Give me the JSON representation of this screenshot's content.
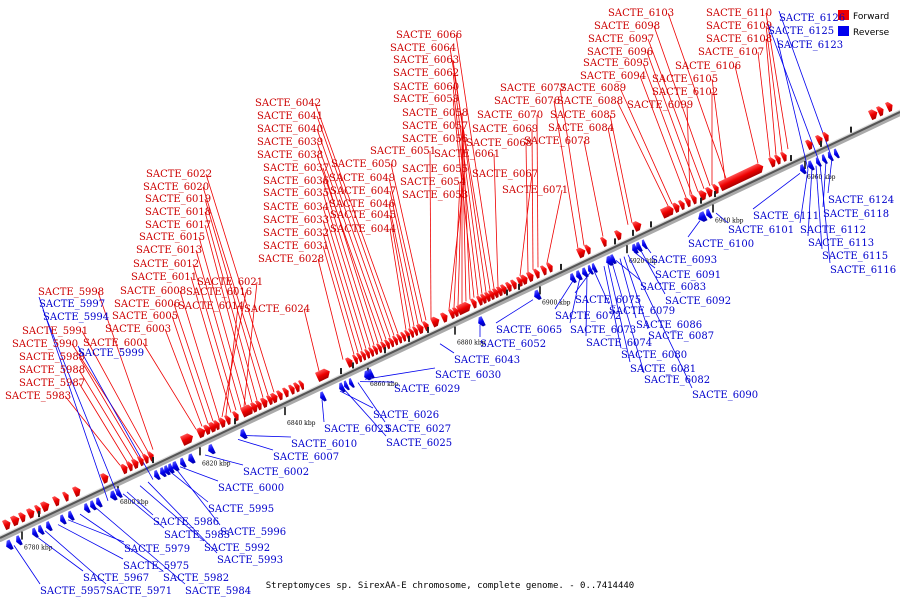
{
  "legend": {
    "forward_label": "Forward",
    "reverse_label": "Reverse",
    "forward_color": "#ee0000",
    "reverse_color": "#0000ee"
  },
  "caption": "Streptomyces sp. SirexAA-E chromosome, complete genome. - 0..7414440",
  "ticks": [
    "6780 kbp",
    "6800 kbp",
    "6820 kbp",
    "6840 kbp",
    "6860 kbp",
    "6880 kbp",
    "6900 kbp",
    "6920 kbp",
    "6940 kbp",
    "6960 kbp"
  ],
  "forward_labels": [
    "SACTE_5983",
    "SACTE_5987",
    "SACTE_5988",
    "SACTE_5989",
    "SACTE_5990",
    "SACTE_5991",
    "SACTE_5998",
    "SACTE_6001",
    "SACTE_6003",
    "SACTE_6005",
    "SACTE_6006",
    "SACTE_6008",
    "SACTE_6011",
    "SACTE_6012",
    "SACTE_6013",
    "SACTE_6015",
    "SACTE_6017",
    "SACTE_6018",
    "SACTE_6019",
    "SACTE_6020",
    "SACTE_6022",
    "SACTE_6014",
    "SACTE_6016",
    "SACTE_6021",
    "SACTE_6024",
    "SACTE_6028",
    "SACTE_6031",
    "SACTE_6032",
    "SACTE_6033",
    "SACTE_6034",
    "SACTE_6035",
    "SACTE_6036",
    "SACTE_6037",
    "SACTE_6038",
    "SACTE_6039",
    "SACTE_6040",
    "SACTE_6041",
    "SACTE_6042",
    "SACTE_6044",
    "SACTE_6045",
    "SACTE_6046",
    "SACTE_6047",
    "SACTE_6049",
    "SACTE_6050",
    "SACTE_6051",
    "SACTE_6053",
    "SACTE_6054",
    "SACTE_6055",
    "SACTE_6056",
    "SACTE_6057",
    "SACTE_6058",
    "SACTE_6059",
    "SACTE_6060",
    "SACTE_6062",
    "SACTE_6063",
    "SACTE_6064",
    "SACTE_6066",
    "SACTE_6061",
    "SACTE_6067",
    "SACTE_6068",
    "SACTE_6069",
    "SACTE_6070",
    "SACTE_6071",
    "SACTE_6076",
    "SACTE_6077",
    "SACTE_6078",
    "SACTE_6084",
    "SACTE_6085",
    "SACTE_6088",
    "SACTE_6089",
    "SACTE_6094",
    "SACTE_6095",
    "SACTE_6096",
    "SACTE_6097",
    "SACTE_6098",
    "SACTE_6103",
    "SACTE_6099",
    "SACTE_6102",
    "SACTE_6105",
    "SACTE_6106",
    "SACTE_6107",
    "SACTE_6108",
    "SACTE_6109",
    "SACTE_6110"
  ],
  "reverse_labels": [
    "SACTE_5957",
    "SACTE_5967",
    "SACTE_5971",
    "SACTE_5975",
    "SACTE_5979",
    "SACTE_5982",
    "SACTE_5984",
    "SACTE_5985",
    "SACTE_5986",
    "SACTE_5992",
    "SACTE_5993",
    "SACTE_5995",
    "SACTE_5996",
    "SACTE_5994",
    "SACTE_5997",
    "SACTE_5999",
    "SACTE_6000",
    "SACTE_6002",
    "SACTE_6007",
    "SACTE_6010",
    "SACTE_6023",
    "SACTE_6025",
    "SACTE_6026",
    "SACTE_6027",
    "SACTE_6029",
    "SACTE_6030",
    "SACTE_6043",
    "SACTE_6052",
    "SACTE_6065",
    "SACTE_6072",
    "SACTE_6073",
    "SACTE_6074",
    "SACTE_6075",
    "SACTE_6079",
    "SACTE_6080",
    "SACTE_6081",
    "SACTE_6082",
    "SACTE_6083",
    "SACTE_6086",
    "SACTE_6087",
    "SACTE_6090",
    "SACTE_6091",
    "SACTE_6092",
    "SACTE_6093",
    "SACTE_6100",
    "SACTE_6101",
    "SACTE_6111",
    "SACTE_6112",
    "SACTE_6113",
    "SACTE_6115",
    "SACTE_6116",
    "SACTE_6118",
    "SACTE_6124",
    "SACTE_6123",
    "SACTE_6125",
    "SACTE_6126"
  ]
}
